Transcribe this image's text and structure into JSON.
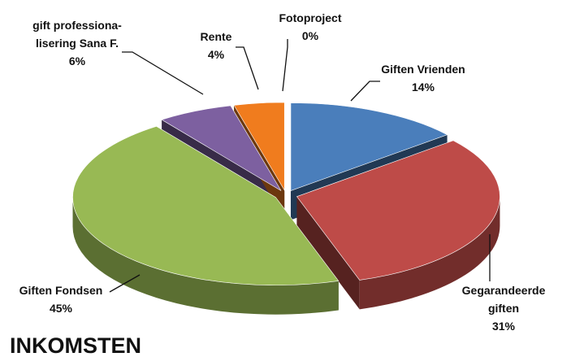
{
  "chart_data": {
    "type": "pie",
    "title": "INKOMSTEN",
    "categories": [
      "Giften Vrienden",
      "Gegarandeerde\ngiften",
      "Giften Fondsen",
      "gift professiona-\nlisering Sana F.",
      "Rente",
      "Fotoproject"
    ],
    "values": [
      14,
      31,
      45,
      6,
      4,
      0
    ],
    "value_labels": [
      "14%",
      "31%",
      "45%",
      "6%",
      "4%",
      "0%"
    ],
    "colors": [
      "#4a7ebb",
      "#be4b48",
      "#98b954",
      "#7d60a0",
      "#f07c1e",
      "#4bacc6"
    ]
  }
}
